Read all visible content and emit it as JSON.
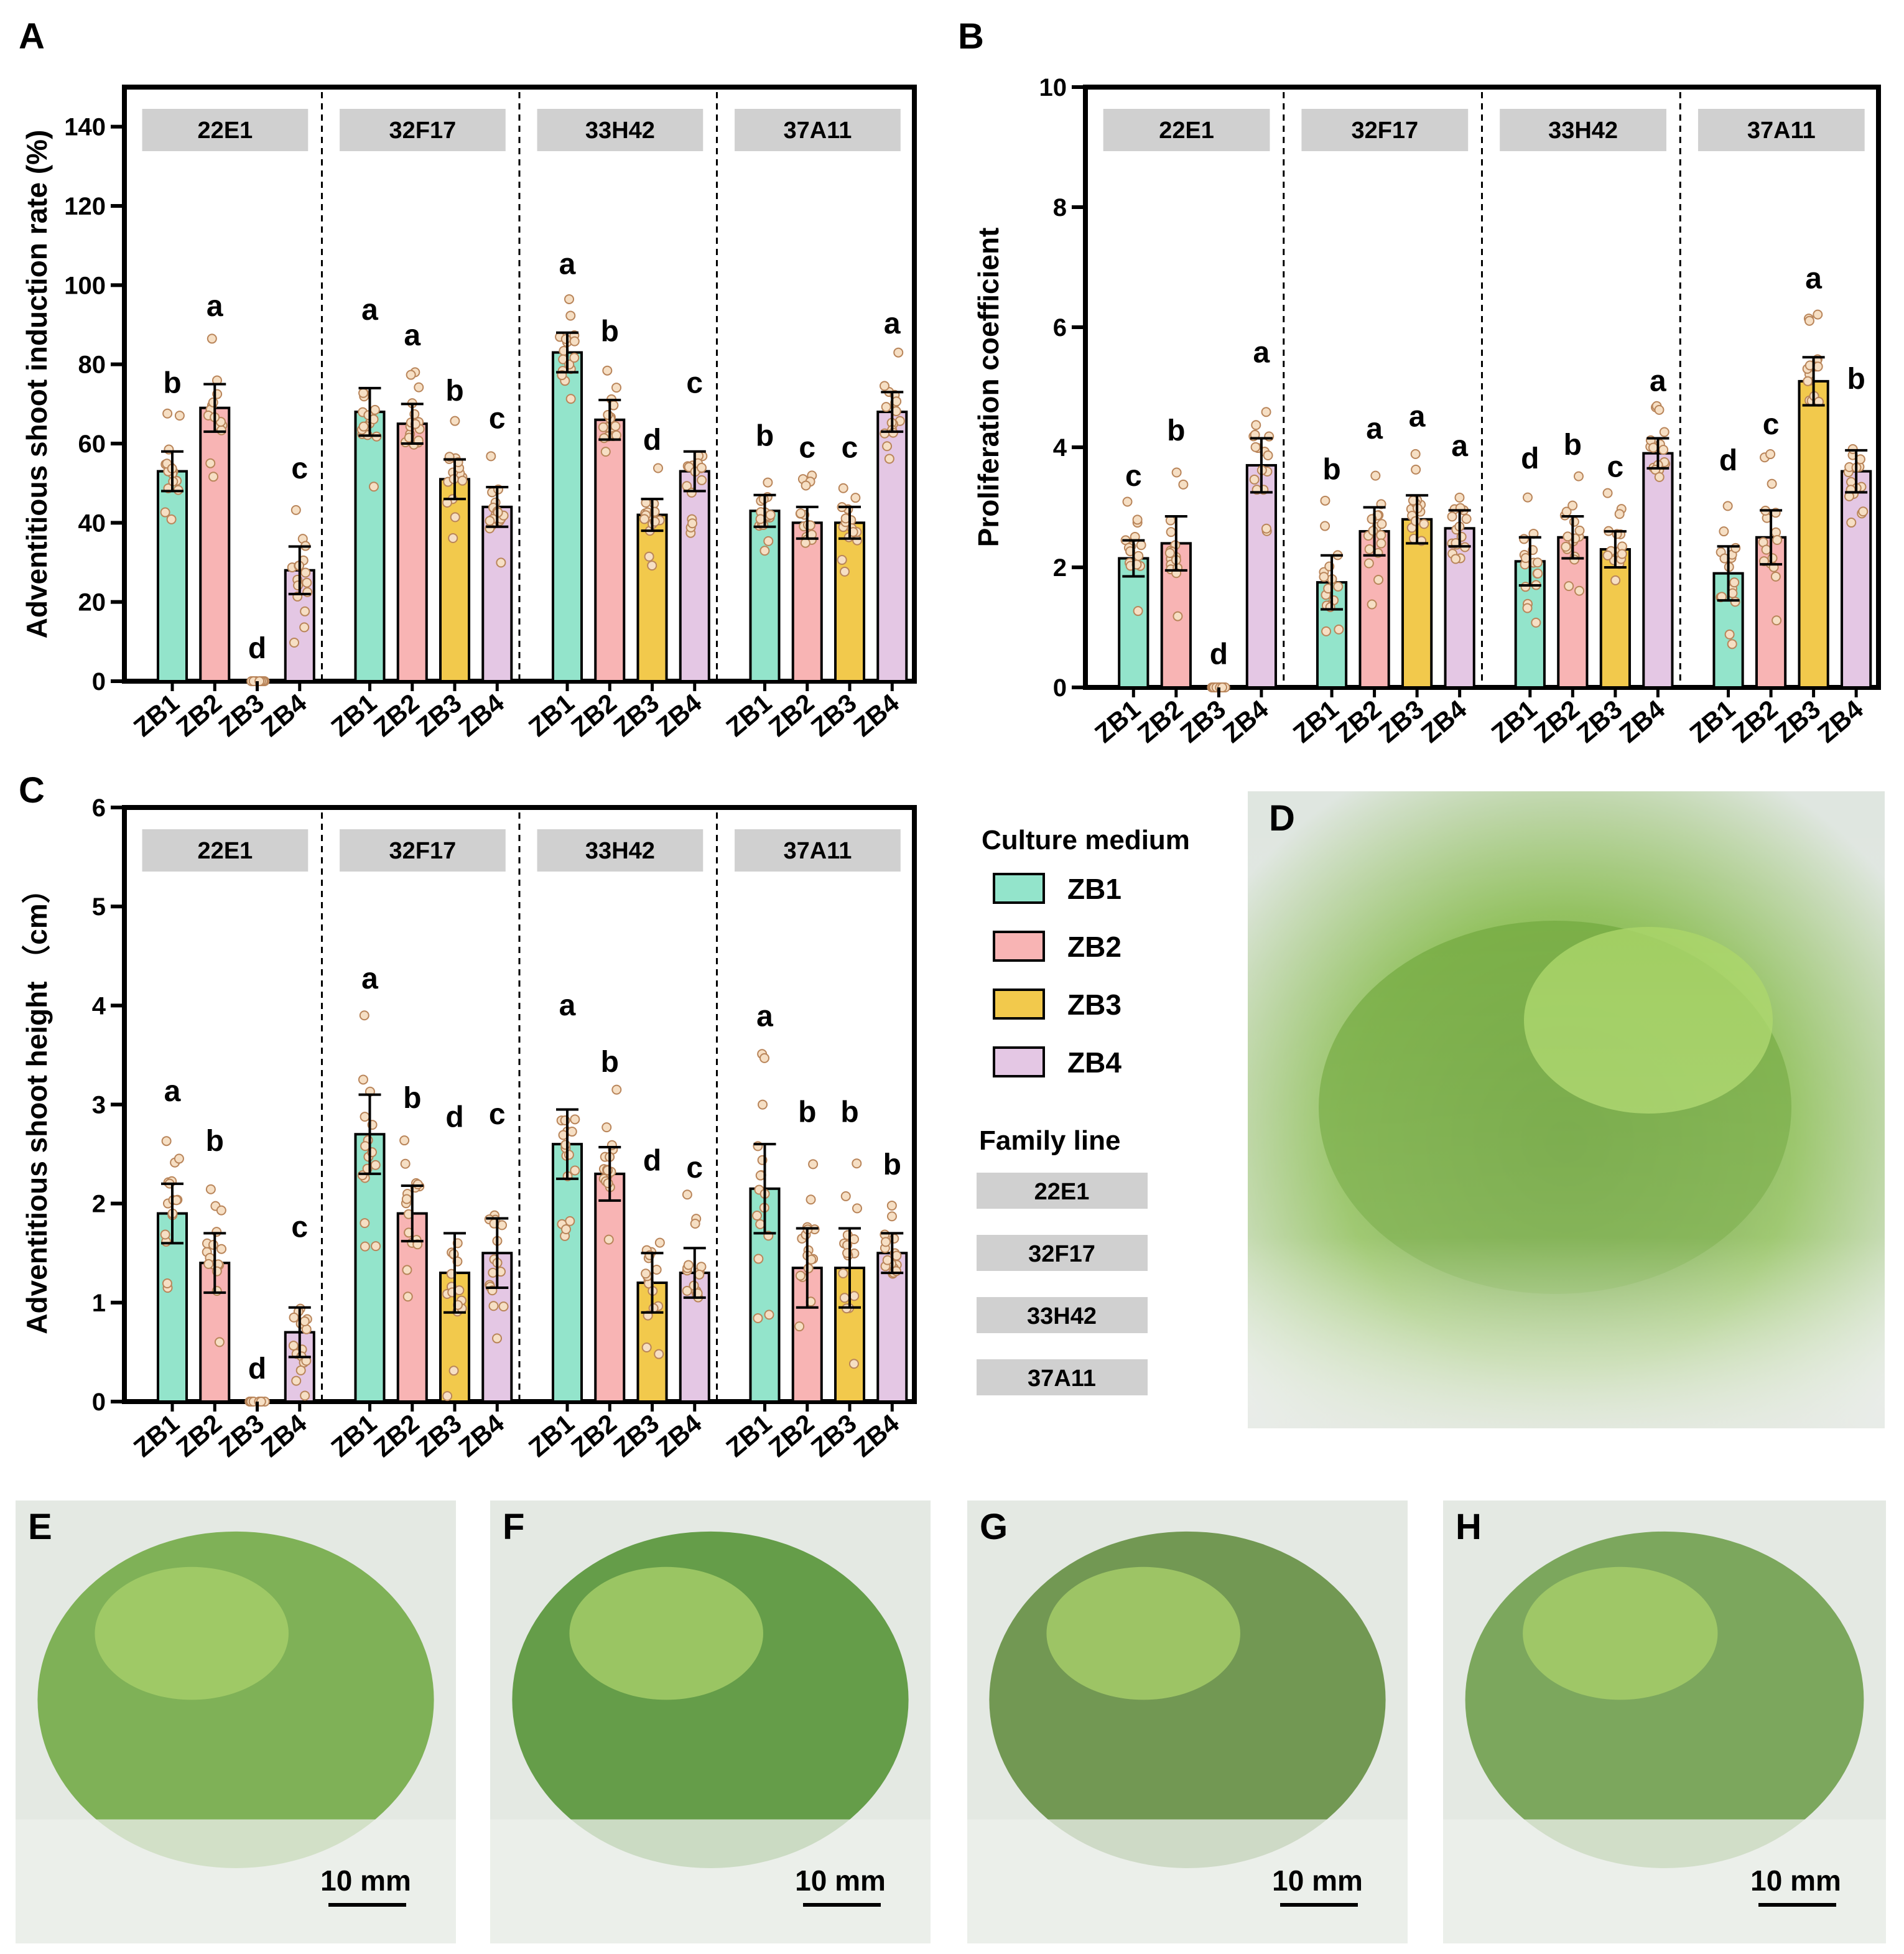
{
  "colors": {
    "ZB1": "#93E4CB",
    "ZB2": "#F8B4B4",
    "ZB3": "#F2C94C",
    "ZB4": "#E4C7E4",
    "point_fill": "#F6DFC4",
    "point_stroke": "#B9855A",
    "strip": "#D0D0D0"
  },
  "panels": {
    "A": "A",
    "B": "B",
    "C": "C",
    "D": "D",
    "E": "E",
    "F": "F",
    "G": "G",
    "H": "H"
  },
  "legend": {
    "medium_title": "Culture medium",
    "media": [
      "ZB1",
      "ZB2",
      "ZB3",
      "ZB4"
    ],
    "family_title": "Family line",
    "families": [
      "22E1",
      "32F17",
      "33H42",
      "37A11"
    ]
  },
  "scale_bar": "10 mm",
  "chart_data": [
    {
      "id": "A",
      "type": "bar",
      "ylabel": "Adventitious shoot induction rate (%)",
      "ylim": [
        0,
        150
      ],
      "yticks": [
        0,
        20,
        40,
        60,
        80,
        100,
        120,
        140
      ],
      "groups": [
        "22E1",
        "32F17",
        "33H42",
        "37A11"
      ],
      "categories": [
        "ZB1",
        "ZB2",
        "ZB3",
        "ZB4"
      ],
      "values": [
        [
          53,
          69,
          0,
          28
        ],
        [
          68,
          65,
          51,
          44
        ],
        [
          83,
          66,
          42,
          53
        ],
        [
          43,
          40,
          40,
          68
        ]
      ],
      "errors": [
        [
          5,
          6,
          0,
          6
        ],
        [
          6,
          5,
          5,
          5
        ],
        [
          5,
          5,
          4,
          5
        ],
        [
          4,
          4,
          4,
          5
        ]
      ],
      "letters": [
        [
          "b",
          "a",
          "d",
          "c"
        ],
        [
          "a",
          "a",
          "b",
          "c"
        ],
        [
          "a",
          "b",
          "d",
          "c"
        ],
        [
          "b",
          "c",
          "c",
          "a"
        ]
      ]
    },
    {
      "id": "B",
      "type": "bar",
      "ylabel": "Proliferation coefficient",
      "ylim": [
        0,
        10
      ],
      "yticks": [
        0,
        2,
        4,
        6,
        8,
        10
      ],
      "groups": [
        "22E1",
        "32F17",
        "33H42",
        "37A11"
      ],
      "categories": [
        "ZB1",
        "ZB2",
        "ZB3",
        "ZB4"
      ],
      "values": [
        [
          2.15,
          2.4,
          0,
          3.7
        ],
        [
          1.75,
          2.6,
          2.8,
          2.65
        ],
        [
          2.1,
          2.5,
          2.3,
          3.9
        ],
        [
          1.9,
          2.5,
          5.1,
          3.6
        ]
      ],
      "errors": [
        [
          0.3,
          0.45,
          0,
          0.45
        ],
        [
          0.45,
          0.4,
          0.4,
          0.3
        ],
        [
          0.4,
          0.35,
          0.3,
          0.25
        ],
        [
          0.45,
          0.45,
          0.4,
          0.35
        ]
      ],
      "letters": [
        [
          "c",
          "b",
          "d",
          "a"
        ],
        [
          "b",
          "a",
          "a",
          "a"
        ],
        [
          "d",
          "b",
          "c",
          "a"
        ],
        [
          "d",
          "c",
          "a",
          "b"
        ]
      ]
    },
    {
      "id": "C",
      "type": "bar",
      "ylabel": "Adventitious shoot height （cm）",
      "ylim": [
        0,
        6
      ],
      "yticks": [
        0,
        1,
        2,
        3,
        4,
        5,
        6
      ],
      "groups": [
        "22E1",
        "32F17",
        "33H42",
        "37A11"
      ],
      "categories": [
        "ZB1",
        "ZB2",
        "ZB3",
        "ZB4"
      ],
      "values": [
        [
          1.9,
          1.4,
          0,
          0.7
        ],
        [
          2.7,
          1.9,
          1.3,
          1.5
        ],
        [
          2.6,
          2.3,
          1.2,
          1.3
        ],
        [
          2.15,
          1.35,
          1.35,
          1.5
        ]
      ],
      "errors": [
        [
          0.3,
          0.3,
          0,
          0.25
        ],
        [
          0.4,
          0.28,
          0.4,
          0.35
        ],
        [
          0.35,
          0.27,
          0.3,
          0.25
        ],
        [
          0.45,
          0.4,
          0.4,
          0.2
        ]
      ],
      "letters": [
        [
          "a",
          "b",
          "d",
          "c"
        ],
        [
          "a",
          "b",
          "d",
          "c"
        ],
        [
          "a",
          "b",
          "d",
          "c"
        ],
        [
          "a",
          "b",
          "b",
          "b"
        ]
      ]
    }
  ]
}
